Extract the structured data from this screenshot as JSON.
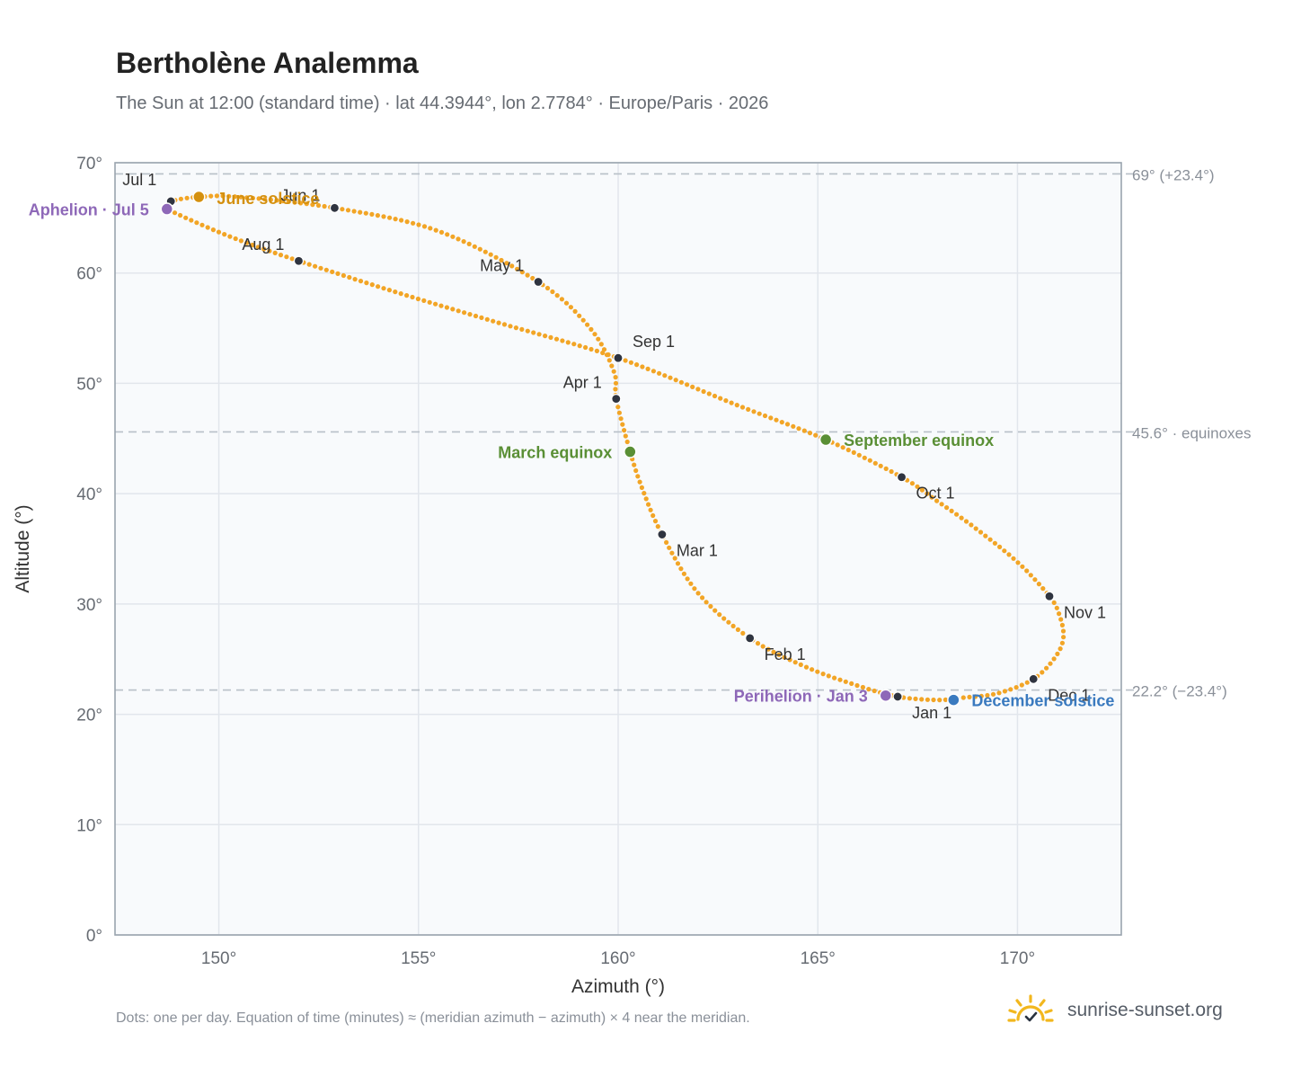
{
  "header": {
    "title": "Bertholène Analemma",
    "subtitle": "The Sun at 12:00 (standard time) · lat 44.3944°, lon 2.7784° · Europe/Paris · 2026"
  },
  "footer": {
    "note": "Dots: one per day. Equation of time (minutes) ≈ (meridian azimuth − azimuth) × 4 near the meridian.",
    "brand": "sunrise-sunset.org",
    "brand_icon": "sunrise-logo-icon"
  },
  "colors": {
    "curve": "#f2a526",
    "month_marker": "#2f3440",
    "equinox": "#5a8f35",
    "june_solstice": "#d4900f",
    "december_solstice": "#3a7abf",
    "aphelion_perihelion": "#8e68b8",
    "reference_line": "#b8c0c8",
    "plot_bg": "#f8fafc",
    "grid": "#e2e6ec",
    "axis": "#9aa4ae"
  },
  "chart_data": {
    "type": "scatter",
    "xlabel": "Azimuth (°)",
    "ylabel": "Altitude (°)",
    "xlim": [
      147.4,
      172.6
    ],
    "ylim": [
      0,
      70
    ],
    "x_ticks": [
      150,
      155,
      160,
      165,
      170
    ],
    "x_tick_labels": [
      "150°",
      "155°",
      "160°",
      "165°",
      "170°"
    ],
    "y_ticks": [
      0,
      10,
      20,
      30,
      40,
      50,
      60,
      70
    ],
    "y_tick_labels": [
      "0°",
      "10°",
      "20°",
      "30°",
      "40°",
      "50°",
      "60°",
      "70°"
    ],
    "grid": true,
    "reference_lines": [
      {
        "altitude": 68.99,
        "label": "69° (+23.4°)"
      },
      {
        "altitude": 45.6,
        "label": "45.6° · equinoxes"
      },
      {
        "altitude": 22.2,
        "label": "22.2° (−23.4°)"
      }
    ],
    "analemma_path": {
      "series": "Sun position at 12:00, one dot per day",
      "knots": [
        [
          167.0,
          21.6
        ],
        [
          168.0,
          21.3
        ],
        [
          168.6,
          21.5
        ],
        [
          169.5,
          21.9
        ],
        [
          170.4,
          23.2
        ],
        [
          170.95,
          25.2
        ],
        [
          171.15,
          27.0
        ],
        [
          171.05,
          29.0
        ],
        [
          170.8,
          30.7
        ],
        [
          170.0,
          33.8
        ],
        [
          168.9,
          37.0
        ],
        [
          168.0,
          39.3
        ],
        [
          167.1,
          41.5
        ],
        [
          165.2,
          44.9
        ],
        [
          163.0,
          48.0
        ],
        [
          160.0,
          52.3
        ],
        [
          157.0,
          55.5
        ],
        [
          154.5,
          58.2
        ],
        [
          152.0,
          61.1
        ],
        [
          150.5,
          63.0
        ],
        [
          149.3,
          64.8
        ],
        [
          148.7,
          65.9
        ],
        [
          148.8,
          66.5
        ],
        [
          149.5,
          66.9
        ],
        [
          150.5,
          66.9
        ],
        [
          152.9,
          65.9
        ],
        [
          155.5,
          63.8
        ],
        [
          158.0,
          59.2
        ],
        [
          159.3,
          55.0
        ],
        [
          159.9,
          51.0
        ],
        [
          159.95,
          48.6
        ],
        [
          160.3,
          43.8
        ],
        [
          160.6,
          40.5
        ],
        [
          161.1,
          36.3
        ],
        [
          162.0,
          31.0
        ],
        [
          163.3,
          26.9
        ],
        [
          164.7,
          24.3
        ],
        [
          166.0,
          22.6
        ],
        [
          167.0,
          21.6
        ]
      ],
      "dot_count": 365
    },
    "month_markers": [
      {
        "label": "Jan 1",
        "azimuth": 167.0,
        "altitude": 21.6
      },
      {
        "label": "Feb 1",
        "azimuth": 163.3,
        "altitude": 26.9
      },
      {
        "label": "Mar 1",
        "azimuth": 161.1,
        "altitude": 36.3
      },
      {
        "label": "Apr 1",
        "azimuth": 159.95,
        "altitude": 48.6
      },
      {
        "label": "May 1",
        "azimuth": 158.0,
        "altitude": 59.2
      },
      {
        "label": "Jun 1",
        "azimuth": 152.9,
        "altitude": 65.9
      },
      {
        "label": "Jul 1",
        "azimuth": 148.8,
        "altitude": 66.5
      },
      {
        "label": "Aug 1",
        "azimuth": 152.0,
        "altitude": 61.1
      },
      {
        "label": "Sep 1",
        "azimuth": 160.0,
        "altitude": 52.3
      },
      {
        "label": "Oct 1",
        "azimuth": 167.1,
        "altitude": 41.5
      },
      {
        "label": "Nov 1",
        "azimuth": 170.8,
        "altitude": 30.7
      },
      {
        "label": "Dec 1",
        "azimuth": 170.4,
        "altitude": 23.2
      }
    ],
    "special_events": [
      {
        "label": "March equinox",
        "azimuth": 160.3,
        "altitude": 43.8,
        "kind": "equinox"
      },
      {
        "label": "September equinox",
        "azimuth": 165.2,
        "altitude": 44.9,
        "kind": "equinox"
      },
      {
        "label": "June solstice",
        "azimuth": 149.5,
        "altitude": 66.9,
        "kind": "june_solstice"
      },
      {
        "label": "December solstice",
        "azimuth": 168.4,
        "altitude": 21.3,
        "kind": "december_solstice"
      },
      {
        "label": "Aphelion · Jul 5",
        "azimuth": 148.7,
        "altitude": 65.8,
        "kind": "aphelion_perihelion"
      },
      {
        "label": "Perihelion · Jan 3",
        "azimuth": 166.7,
        "altitude": 21.7,
        "kind": "aphelion_perihelion"
      }
    ]
  }
}
